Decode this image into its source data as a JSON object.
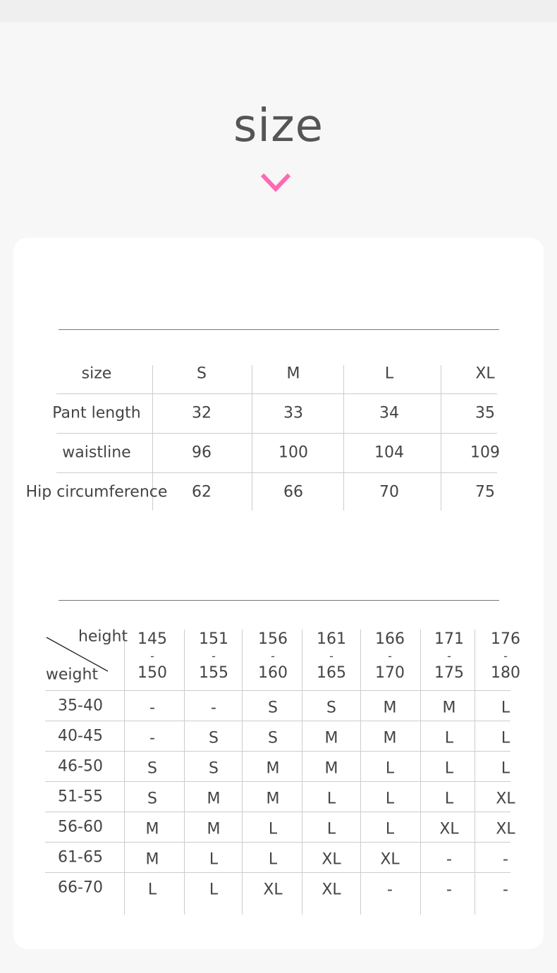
{
  "title": "size",
  "accent_color": "#ff69b4",
  "measurements": {
    "columns": [
      "size",
      "S",
      "M",
      "L",
      "XL"
    ],
    "rows": [
      [
        "Pant length",
        "32",
        "33",
        "34",
        "35"
      ],
      [
        "waistline",
        "96",
        "100",
        "104",
        "109"
      ],
      [
        "Hip circumference",
        "62",
        "66",
        "70",
        "75"
      ]
    ]
  },
  "recommendation": {
    "corner_top": "height",
    "corner_bottom": "weight",
    "height_ranges": [
      [
        "145",
        "150"
      ],
      [
        "151",
        "155"
      ],
      [
        "156",
        "160"
      ],
      [
        "161",
        "165"
      ],
      [
        "166",
        "170"
      ],
      [
        "171",
        "175"
      ],
      [
        "176",
        "180"
      ]
    ],
    "range_separator": "-",
    "rows": [
      {
        "weight": "35-40",
        "sizes": [
          "-",
          "-",
          "S",
          "S",
          "M",
          "M",
          "L"
        ]
      },
      {
        "weight": "40-45",
        "sizes": [
          "-",
          "S",
          "S",
          "M",
          "M",
          "L",
          "L"
        ]
      },
      {
        "weight": "46-50",
        "sizes": [
          "S",
          "S",
          "M",
          "M",
          "L",
          "L",
          "L"
        ]
      },
      {
        "weight": "51-55",
        "sizes": [
          "S",
          "M",
          "M",
          "L",
          "L",
          "L",
          "XL"
        ]
      },
      {
        "weight": "56-60",
        "sizes": [
          "M",
          "M",
          "L",
          "L",
          "L",
          "XL",
          "XL"
        ]
      },
      {
        "weight": "61-65",
        "sizes": [
          "M",
          "L",
          "L",
          "XL",
          "XL",
          "-",
          "-"
        ]
      },
      {
        "weight": "66-70",
        "sizes": [
          "L",
          "L",
          "XL",
          "XL",
          "-",
          "-",
          "-"
        ]
      }
    ]
  }
}
